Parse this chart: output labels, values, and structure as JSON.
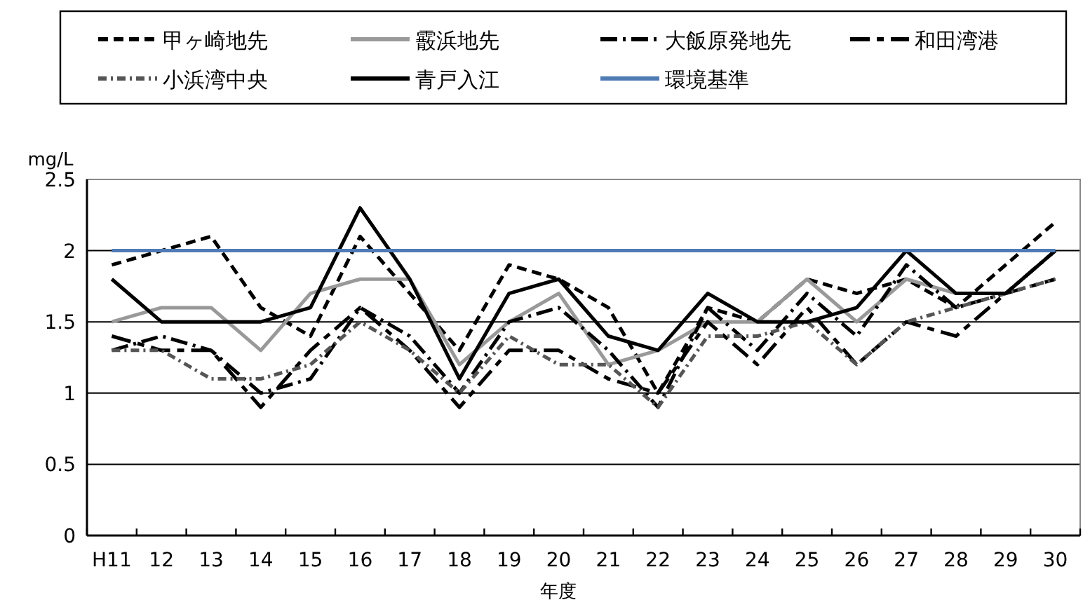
{
  "chart_data": {
    "type": "line",
    "xlabel": "年度",
    "ylabel": "mg/L",
    "categories": [
      "H11",
      "12",
      "13",
      "14",
      "15",
      "16",
      "17",
      "18",
      "19",
      "20",
      "21",
      "22",
      "23",
      "24",
      "25",
      "26",
      "27",
      "28",
      "29",
      "30"
    ],
    "ylim": [
      0,
      2.5
    ],
    "yticks": [
      0,
      0.5,
      1,
      1.5,
      2,
      2.5
    ],
    "grid": "y",
    "legend": "top",
    "series": [
      {
        "name": "甲ヶ崎地先",
        "color": "#000000",
        "line_style": "dashed",
        "values": [
          1.9,
          2.0,
          2.1,
          1.6,
          1.4,
          2.1,
          1.7,
          1.3,
          1.9,
          1.8,
          1.6,
          1.0,
          1.6,
          1.5,
          1.8,
          1.7,
          1.8,
          1.6,
          1.9,
          2.2
        ]
      },
      {
        "name": "霰浜地先",
        "color": "#999999",
        "line_style": "solid",
        "values": [
          1.5,
          1.6,
          1.6,
          1.3,
          1.7,
          1.8,
          1.8,
          1.2,
          1.5,
          1.7,
          1.2,
          1.3,
          1.5,
          1.5,
          1.8,
          1.5,
          1.8,
          1.7,
          1.7,
          2.0
        ]
      },
      {
        "name": "大飯原発地先",
        "color": "#000000",
        "line_style": "dashdot",
        "values": [
          1.3,
          1.4,
          1.3,
          1.0,
          1.1,
          1.6,
          1.4,
          1.0,
          1.5,
          1.6,
          1.3,
          0.9,
          1.6,
          1.3,
          1.7,
          1.4,
          1.9,
          1.6,
          1.7,
          2.0
        ]
      },
      {
        "name": "和田湾港",
        "color": "#000000",
        "line_style": "longdash",
        "values": [
          1.4,
          1.3,
          1.3,
          0.9,
          1.3,
          1.6,
          1.3,
          0.9,
          1.3,
          1.3,
          1.1,
          1.0,
          1.5,
          1.2,
          1.6,
          1.2,
          1.5,
          1.4,
          1.7,
          1.8
        ]
      },
      {
        "name": "小浜湾中央",
        "color": "#555555",
        "line_style": "dotted",
        "values": [
          1.3,
          1.3,
          1.1,
          1.1,
          1.2,
          1.5,
          1.3,
          1.0,
          1.4,
          1.2,
          1.2,
          0.9,
          1.4,
          1.4,
          1.5,
          1.2,
          1.5,
          1.6,
          1.7,
          1.8
        ]
      },
      {
        "name": "青戸入江",
        "color": "#000000",
        "line_style": "solid",
        "values": [
          1.8,
          1.5,
          1.5,
          1.5,
          1.6,
          2.3,
          1.8,
          1.1,
          1.7,
          1.8,
          1.4,
          1.3,
          1.7,
          1.5,
          1.5,
          1.6,
          2.0,
          1.7,
          1.7,
          2.0
        ]
      },
      {
        "name": "環境基準",
        "color": "#4f7bb5",
        "line_style": "solid",
        "values": [
          2,
          2,
          2,
          2,
          2,
          2,
          2,
          2,
          2,
          2,
          2,
          2,
          2,
          2,
          2,
          2,
          2,
          2,
          2,
          2
        ]
      }
    ]
  }
}
